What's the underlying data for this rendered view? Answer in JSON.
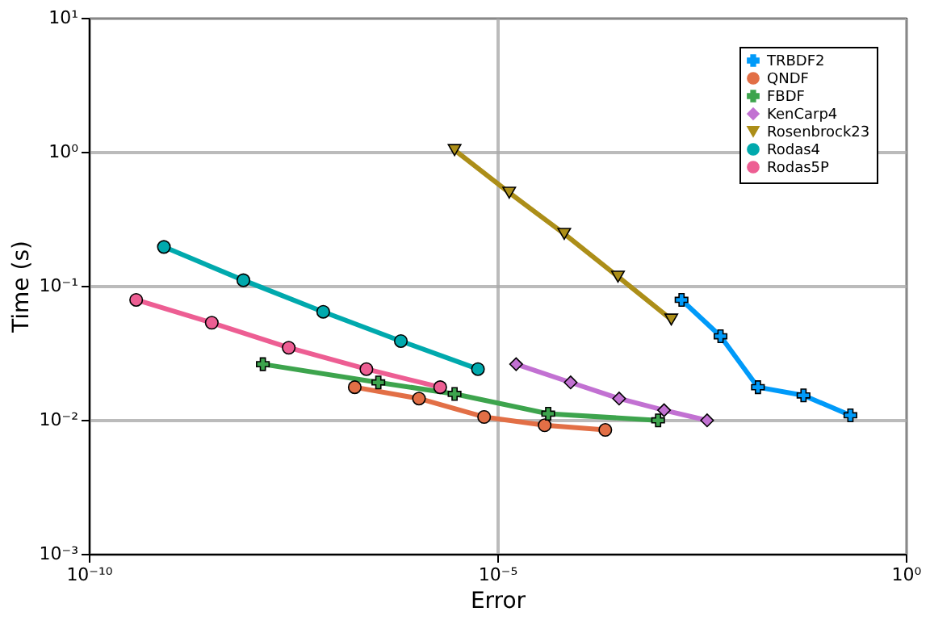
{
  "chart_data": {
    "type": "line",
    "xlabel": "Error",
    "ylabel": "Time (s)",
    "log": "xy",
    "grid": true,
    "legend": "top right",
    "xlim": [
      1e-10,
      1
    ],
    "ylim": [
      0.001,
      10
    ],
    "xticks": [
      {
        "value": 1e-10,
        "label": "10⁻¹⁰"
      },
      {
        "value": 1e-05,
        "label": "10⁻⁵"
      },
      {
        "value": 1,
        "label": "10⁰"
      }
    ],
    "yticks": [
      {
        "value": 0.001,
        "label": "10⁻³"
      },
      {
        "value": 0.01,
        "label": "10⁻²"
      },
      {
        "value": 0.1,
        "label": "10⁻¹"
      },
      {
        "value": 1,
        "label": "10⁰"
      },
      {
        "value": 10,
        "label": "10¹"
      }
    ],
    "series": [
      {
        "name": "TRBDF2",
        "color": "#009af9",
        "marker": "cross",
        "x": [
          0.0018,
          0.0054,
          0.0155,
          0.056,
          0.21
        ],
        "values": [
          0.0785,
          0.042,
          0.0175,
          0.0152,
          0.0108
        ]
      },
      {
        "name": "QNDF",
        "color": "#e26f46",
        "marker": "circle",
        "x": [
          1.8e-07,
          1.1e-06,
          6.9e-06,
          3.8e-05,
          0.00021
        ],
        "values": [
          0.0175,
          0.0144,
          0.0105,
          0.0091,
          0.0084
        ]
      },
      {
        "name": "FBDF",
        "color": "#3da44d",
        "marker": "cross",
        "x": [
          1.35e-08,
          3.5e-07,
          3e-06,
          4.2e-05,
          0.00093
        ],
        "values": [
          0.026,
          0.019,
          0.0156,
          0.0111,
          0.0099
        ]
      },
      {
        "name": "KenCarp4",
        "color": "#c271d2",
        "marker": "diamond",
        "x": [
          1.7e-05,
          7.9e-05,
          0.00031,
          0.0011,
          0.0037
        ],
        "values": [
          0.026,
          0.019,
          0.0144,
          0.0118,
          0.0099
        ]
      },
      {
        "name": "Rosenbrock23",
        "color": "#ac8e18",
        "marker": "triangle",
        "x": [
          3e-06,
          1.4e-05,
          6.6e-05,
          0.0003,
          0.00135
        ],
        "values": [
          1.03,
          0.495,
          0.244,
          0.117,
          0.056
        ]
      },
      {
        "name": "Rodas4",
        "color": "#00a9ad",
        "marker": "circle",
        "x": [
          8.3e-10,
          7.8e-09,
          7.4e-08,
          6.6e-07,
          5.8e-06
        ],
        "values": [
          0.195,
          0.11,
          0.064,
          0.0387,
          0.0239
        ]
      },
      {
        "name": "Rodas5P",
        "color": "#ed5e93",
        "marker": "circle",
        "x": [
          3.8e-10,
          3.2e-09,
          2.8e-08,
          2.5e-07,
          2e-06
        ],
        "values": [
          0.0785,
          0.053,
          0.0345,
          0.0239,
          0.0175
        ]
      }
    ]
  }
}
